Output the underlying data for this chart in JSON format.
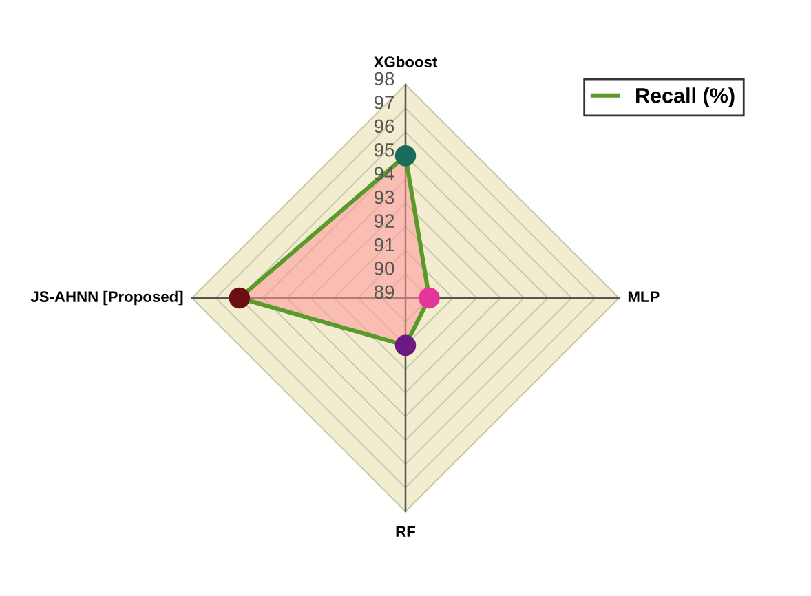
{
  "chart_data": {
    "type": "radar",
    "categories": [
      "XGboost",
      "MLP",
      "RF",
      "JS-AHNN [Proposed]"
    ],
    "series": [
      {
        "name": "Recall (%)",
        "color": "#5a9a2a",
        "values": [
          95,
          90,
          91,
          96
        ],
        "colors": [
          "#1a6b5a",
          "#e8359a",
          "#6a1a80",
          "#6b0f12"
        ]
      }
    ],
    "ylim": [
      89,
      98
    ],
    "yticks": [
      89,
      90,
      91,
      92,
      93,
      94,
      95,
      96,
      97,
      98
    ],
    "grid": true,
    "legend": "top right",
    "marker": "circle"
  }
}
